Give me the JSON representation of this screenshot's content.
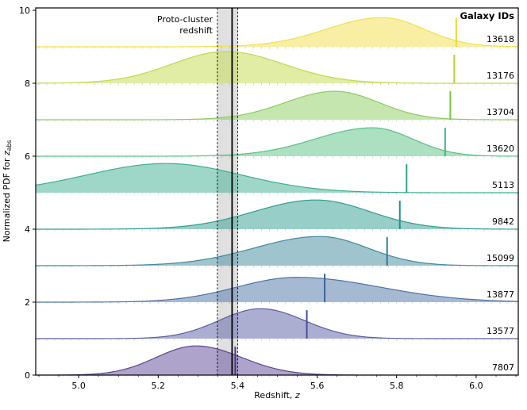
{
  "figure": {
    "background": "#ffffff",
    "frame_color": "#000000"
  },
  "chart_data": {
    "type": "area",
    "variant": "ridgeline",
    "title": "",
    "xlabel_prefix": "Redshift, ",
    "xlabel_var": "z",
    "ylabel_prefix": "Normalized PDF for ",
    "ylabel_var": "z",
    "ylabel_sub": "abs",
    "legend_header": "Galaxy IDs",
    "annotation_line1": "Proto-cluster",
    "annotation_line2": "redshift",
    "xlim": [
      4.892,
      6.106
    ],
    "ylim": [
      0,
      10.065
    ],
    "x_ticks": [
      {
        "v": 5.0,
        "label": "5.0"
      },
      {
        "v": 5.2,
        "label": "5.2"
      },
      {
        "v": 5.4,
        "label": "5.4"
      },
      {
        "v": 5.6,
        "label": "5.6"
      },
      {
        "v": 5.8,
        "label": "5.8"
      },
      {
        "v": 6.0,
        "label": "6.0"
      }
    ],
    "x_minor_step": 0.05,
    "y_ticks": [
      {
        "v": 0,
        "label": "0"
      },
      {
        "v": 2,
        "label": "2"
      },
      {
        "v": 4,
        "label": "4"
      },
      {
        "v": 6,
        "label": "6"
      },
      {
        "v": 8,
        "label": "8"
      },
      {
        "v": 10,
        "label": "10"
      }
    ],
    "row_minor_tick_step": 0.02,
    "proto_cluster": {
      "redshift": 5.386,
      "band": [
        5.349,
        5.4
      ],
      "band_fill": "rgba(0,0,0,0.12)",
      "edge_color": "#000000",
      "line_color": "#000000"
    },
    "tick_height": 0.78,
    "fill_opacity": 0.5,
    "series": [
      {
        "id": "13618",
        "offset": 9,
        "mean": 5.764,
        "sigma_left": 0.14,
        "sigma_right": 0.105,
        "amp": 0.8,
        "tick_z": 5.95,
        "line_color": "#f2df4c",
        "tick_color": "#edd930"
      },
      {
        "id": "13176",
        "offset": 8,
        "mean": 5.37,
        "sigma_left": 0.135,
        "sigma_right": 0.145,
        "amp": 0.87,
        "tick_z": 5.945,
        "line_color": "#c3d94a",
        "tick_color": "#b7d133"
      },
      {
        "id": "13704",
        "offset": 7,
        "mean": 5.645,
        "sigma_left": 0.125,
        "sigma_right": 0.11,
        "amp": 0.78,
        "tick_z": 5.935,
        "line_color": "#8bce5e",
        "tick_color": "#79c544"
      },
      {
        "id": "13620",
        "offset": 6,
        "mean": 5.74,
        "sigma_left": 0.145,
        "sigma_right": 0.1,
        "amp": 0.78,
        "tick_z": 5.922,
        "line_color": "#58c184",
        "tick_color": "#44b974"
      },
      {
        "id": "5113",
        "offset": 5,
        "mean": 5.22,
        "sigma_left": 0.2,
        "sigma_right": 0.19,
        "amp": 0.8,
        "tick_z": 5.825,
        "line_color": "#3db092",
        "tick_color": "#2ea489"
      },
      {
        "id": "9842",
        "offset": 4,
        "mean": 5.597,
        "sigma_left": 0.155,
        "sigma_right": 0.135,
        "amp": 0.8,
        "tick_z": 5.808,
        "line_color": "#2f9e90",
        "tick_color": "#219089"
      },
      {
        "id": "15099",
        "offset": 3,
        "mean": 5.607,
        "sigma_left": 0.165,
        "sigma_right": 0.12,
        "amp": 0.8,
        "tick_z": 5.776,
        "line_color": "#3f8a9e",
        "tick_color": "#307d94"
      },
      {
        "id": "13877",
        "offset": 2,
        "mean": 5.548,
        "sigma_left": 0.15,
        "sigma_right": 0.21,
        "amp": 0.68,
        "tick_z": 5.619,
        "line_color": "#4e73a6",
        "tick_color": "#3e629b"
      },
      {
        "id": "13577",
        "offset": 1,
        "mean": 5.458,
        "sigma_left": 0.105,
        "sigma_right": 0.11,
        "amp": 0.82,
        "tick_z": 5.574,
        "line_color": "#5a5ea4",
        "tick_color": "#4a4d99"
      },
      {
        "id": "7807",
        "offset": 0,
        "mean": 5.295,
        "sigma_left": 0.1,
        "sigma_right": 0.115,
        "amp": 0.8,
        "tick_z": 5.394,
        "line_color": "#5e4795",
        "tick_color": "#4c3687"
      }
    ]
  }
}
